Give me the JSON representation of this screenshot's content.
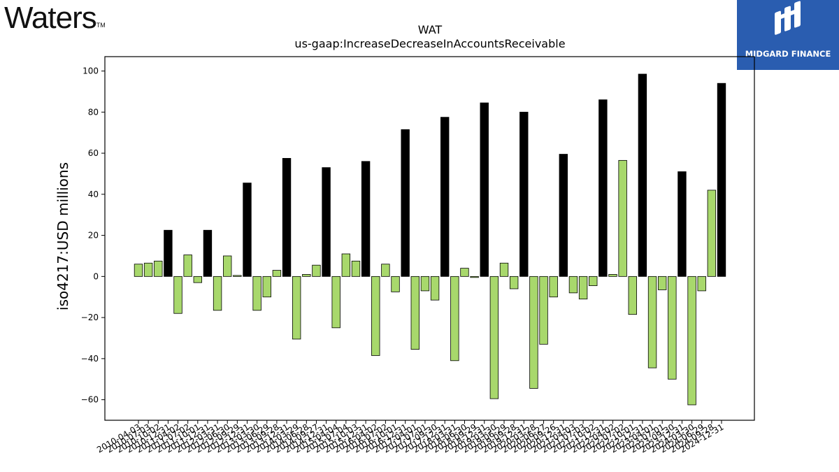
{
  "logos": {
    "left_wordmark": "Waters",
    "left_tm": "TM",
    "right_brand": "MIDGARD FINANCE"
  },
  "chart_data": {
    "type": "bar",
    "title": "WAT",
    "subtitle": "us-gaap:IncreaseDecreaseInAccountsReceivable",
    "xlabel": "",
    "ylabel": "iso4217:USD  millions",
    "ylim": [
      -70,
      107
    ],
    "yticks": [
      -60,
      -40,
      -20,
      0,
      20,
      40,
      60,
      80,
      100
    ],
    "grid": false,
    "legend": "none",
    "colors": {
      "quarterly": "#a8d86c",
      "annual": "#000000"
    },
    "categories": [
      "2010-04-03",
      "2010-07-03",
      "2010-10-02",
      "2010-12-31",
      "2011-04-02",
      "2011-07-02",
      "2011-10-01",
      "2011-12-31",
      "2012-03-31",
      "2012-06-30",
      "2012-09-29",
      "2012-12-31",
      "2013-03-30",
      "2013-06-29",
      "2013-09-28",
      "2013-12-31",
      "2014-03-29",
      "2014-06-28",
      "2014-09-27",
      "2014-12-31",
      "2015-04-04",
      "2015-07-04",
      "2015-10-03",
      "2015-12-31",
      "2016-04-02",
      "2016-07-02",
      "2016-10-01",
      "2016-12-31",
      "2017-04-01",
      "2017-07-01",
      "2017-09-30",
      "2017-12-31",
      "2018-03-31",
      "2018-06-30",
      "2018-09-29",
      "2018-12-31",
      "2019-03-30",
      "2019-06-29",
      "2019-09-28",
      "2019-12-31",
      "2020-03-28",
      "2020-06-27",
      "2020-09-26",
      "2020-12-31",
      "2021-04-03",
      "2021-07-03",
      "2021-10-02",
      "2021-12-31",
      "2022-04-02",
      "2022-07-02",
      "2022-10-01",
      "2022-12-31",
      "2023-04-01",
      "2023-07-01",
      "2023-09-30",
      "2023-12-31",
      "2024-03-30",
      "2024-06-29",
      "2024-09-28",
      "2024-12-31"
    ],
    "values": [
      6,
      6.5,
      7.5,
      22.5,
      -18,
      10.5,
      -3,
      22.5,
      -16.5,
      10,
      0.5,
      45.5,
      -16.5,
      -10,
      3,
      57.5,
      -30.5,
      1,
      5.5,
      53,
      -25,
      11,
      7.5,
      56,
      -38.5,
      6,
      -7.5,
      71.5,
      -35.5,
      -7,
      -11.5,
      77.5,
      -41,
      4,
      -0.5,
      84.5,
      -59.5,
      6.5,
      -6,
      80,
      -54.5,
      -33,
      -10,
      59.5,
      -8,
      -11,
      -4.5,
      86,
      1,
      56.5,
      -18.5,
      98.5,
      -44.5,
      -6.5,
      -50,
      51,
      -62.5,
      -7,
      42,
      94
    ],
    "annual_flags": [
      false,
      false,
      false,
      true,
      false,
      false,
      false,
      true,
      false,
      false,
      false,
      true,
      false,
      false,
      false,
      true,
      false,
      false,
      false,
      true,
      false,
      false,
      false,
      true,
      false,
      false,
      false,
      true,
      false,
      false,
      false,
      true,
      false,
      false,
      false,
      true,
      false,
      false,
      false,
      true,
      false,
      false,
      false,
      true,
      false,
      false,
      false,
      true,
      false,
      false,
      false,
      true,
      false,
      false,
      false,
      true,
      false,
      false,
      false,
      true
    ]
  }
}
